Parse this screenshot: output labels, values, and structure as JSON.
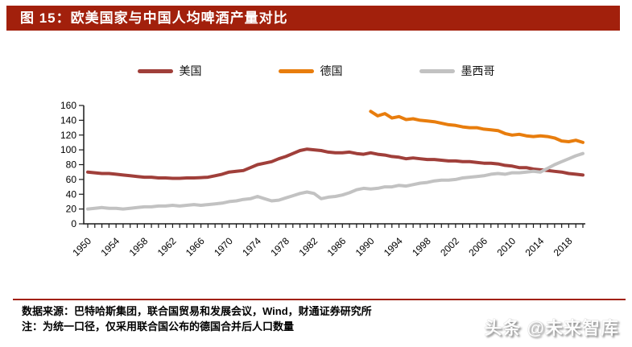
{
  "header": {
    "title": "图 15：欧美国家与中国人均啤酒产量对比",
    "bg_color": "#A2200C"
  },
  "legend": {
    "items": [
      {
        "label": "美国"
      },
      {
        "label": "德国"
      },
      {
        "label": "墨西哥"
      }
    ]
  },
  "chart_data": {
    "type": "line",
    "title": "欧美国家与中国人均啤酒产量对比",
    "xlabel": "",
    "ylabel": "",
    "ylim": [
      0,
      160
    ],
    "grid": false,
    "legend_position": "top",
    "x": [
      1950,
      1951,
      1952,
      1953,
      1954,
      1955,
      1956,
      1957,
      1958,
      1959,
      1960,
      1961,
      1962,
      1963,
      1964,
      1965,
      1966,
      1967,
      1968,
      1969,
      1970,
      1971,
      1972,
      1973,
      1974,
      1975,
      1976,
      1977,
      1978,
      1979,
      1980,
      1981,
      1982,
      1983,
      1984,
      1985,
      1986,
      1987,
      1988,
      1989,
      1990,
      1991,
      1992,
      1993,
      1994,
      1995,
      1996,
      1997,
      1998,
      1999,
      2000,
      2001,
      2002,
      2003,
      2004,
      2005,
      2006,
      2007,
      2008,
      2009,
      2010,
      2011,
      2012,
      2013,
      2014,
      2015,
      2016,
      2017,
      2018,
      2019,
      2020
    ],
    "xticks": [
      1950,
      1954,
      1958,
      1962,
      1966,
      1970,
      1974,
      1978,
      1982,
      1986,
      1990,
      1994,
      1998,
      2002,
      2006,
      2010,
      2014,
      2018
    ],
    "yticks": [
      0,
      20,
      40,
      60,
      80,
      100,
      120,
      140,
      160
    ],
    "series": [
      {
        "id": "us",
        "name": "美国",
        "color": "#A03F3A",
        "values": [
          70,
          69,
          68,
          68,
          67,
          66,
          65,
          64,
          63,
          63,
          62,
          62,
          61.5,
          61.5,
          62,
          62,
          62.5,
          63,
          65,
          67,
          70,
          71,
          72,
          76,
          80,
          82,
          84,
          88,
          91,
          95,
          99,
          101,
          100,
          99,
          97,
          96,
          96,
          97,
          95,
          94,
          96,
          94,
          93,
          91,
          90,
          88,
          89,
          88,
          87,
          87,
          86,
          85,
          85,
          84,
          84,
          83,
          82,
          82,
          81,
          79,
          78,
          76,
          76,
          74,
          73,
          72,
          71,
          70,
          68,
          67,
          66
        ]
      },
      {
        "id": "germany",
        "name": "德国",
        "color": "#E87D0D",
        "values": [
          null,
          null,
          null,
          null,
          null,
          null,
          null,
          null,
          null,
          null,
          null,
          null,
          null,
          null,
          null,
          null,
          null,
          null,
          null,
          null,
          null,
          null,
          null,
          null,
          null,
          null,
          null,
          null,
          null,
          null,
          null,
          null,
          null,
          null,
          null,
          null,
          null,
          null,
          null,
          null,
          152,
          146,
          149,
          143,
          145,
          141,
          142,
          140,
          139,
          138,
          136,
          134,
          133,
          131,
          130,
          130,
          128,
          127,
          126,
          122,
          120,
          121,
          119,
          118,
          119,
          118,
          116,
          112,
          111,
          113,
          110
        ]
      },
      {
        "id": "mexico",
        "name": "墨西哥",
        "color": "#C2C2C2",
        "values": [
          20,
          21,
          22,
          21,
          21,
          20,
          21,
          22,
          23,
          23,
          24,
          24,
          25,
          24,
          25,
          26,
          25,
          26,
          27,
          28,
          30,
          31,
          33,
          34,
          37,
          34,
          31,
          32,
          35,
          38,
          41,
          43,
          41,
          34,
          36,
          37,
          39,
          42,
          46,
          48,
          47,
          48,
          50,
          50,
          52,
          51,
          53,
          55,
          56,
          58,
          59,
          59,
          60,
          62,
          63,
          64,
          65,
          67,
          68,
          67,
          69,
          69,
          70,
          71,
          70,
          75,
          80,
          84,
          88,
          92,
          95
        ]
      }
    ]
  },
  "footer": {
    "source_line": "数据来源：巴特哈斯集团，联合国贸易和发展会议，Wind，财通证券研究所",
    "note_line": "注：为统一口径，仅采用联合国公布的德国合并后人口数量",
    "divider_color": "#A2200C"
  },
  "watermark": {
    "text": "头条 @未来智库"
  }
}
